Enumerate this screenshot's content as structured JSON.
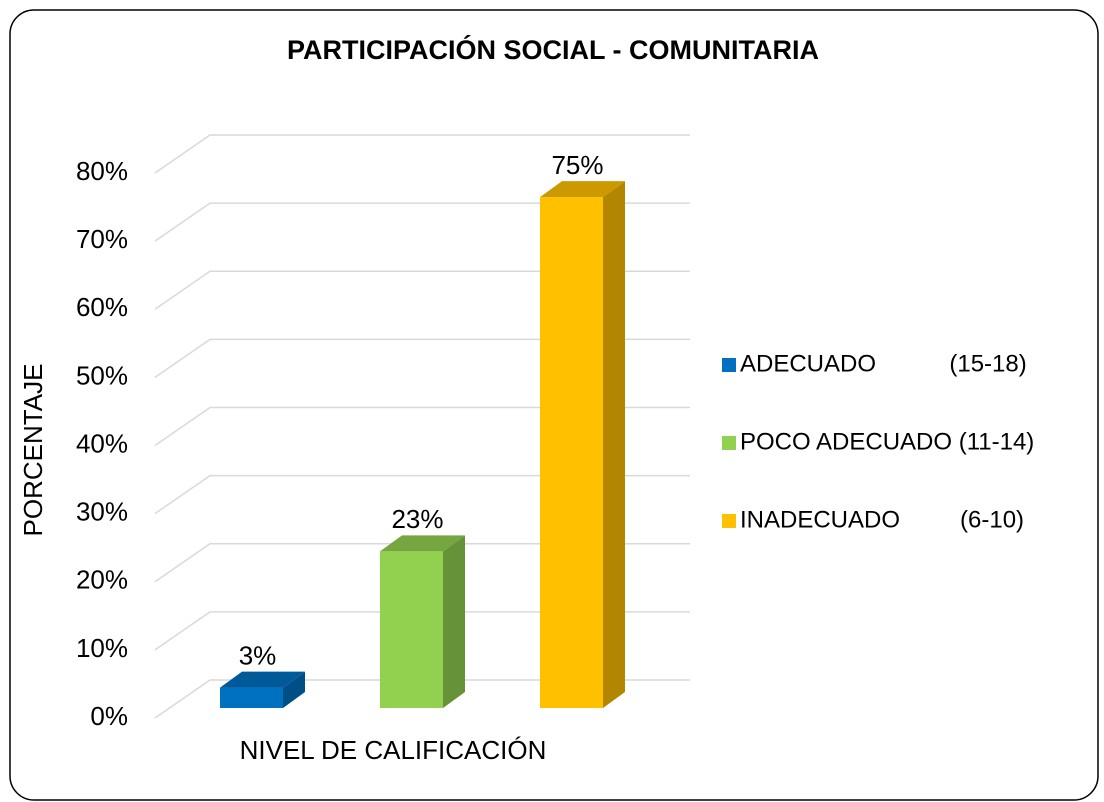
{
  "chart_data": {
    "type": "bar3d",
    "title": "PARTICIPACIÓN SOCIAL - COMUNITARIA",
    "y_label": "PORCENTAJE",
    "x_label": "NIVEL DE CALIFICACIÓN",
    "ylim": [
      0,
      80
    ],
    "yticks": [
      {
        "value": 0,
        "label": "0%"
      },
      {
        "value": 10,
        "label": "10%"
      },
      {
        "value": 20,
        "label": "20%"
      },
      {
        "value": 30,
        "label": "30%"
      },
      {
        "value": 40,
        "label": "40%"
      },
      {
        "value": 50,
        "label": "50%"
      },
      {
        "value": 60,
        "label": "60%"
      },
      {
        "value": 70,
        "label": "70%"
      },
      {
        "value": 80,
        "label": "80%"
      }
    ],
    "grid": true,
    "legend": "right",
    "series": [
      {
        "name": "ADECUADO           (15-18)",
        "color": "#0070c0",
        "values": [
          3
        ],
        "value_labels": [
          "3%"
        ]
      },
      {
        "name": "POCO ADECUADO (11-14)",
        "color": "#92d050",
        "values": [
          23
        ],
        "value_labels": [
          "23%"
        ]
      },
      {
        "name": "INADECUADO         (6-10)",
        "color": "#ffc000",
        "values": [
          75
        ],
        "value_labels": [
          "75%"
        ]
      }
    ]
  }
}
